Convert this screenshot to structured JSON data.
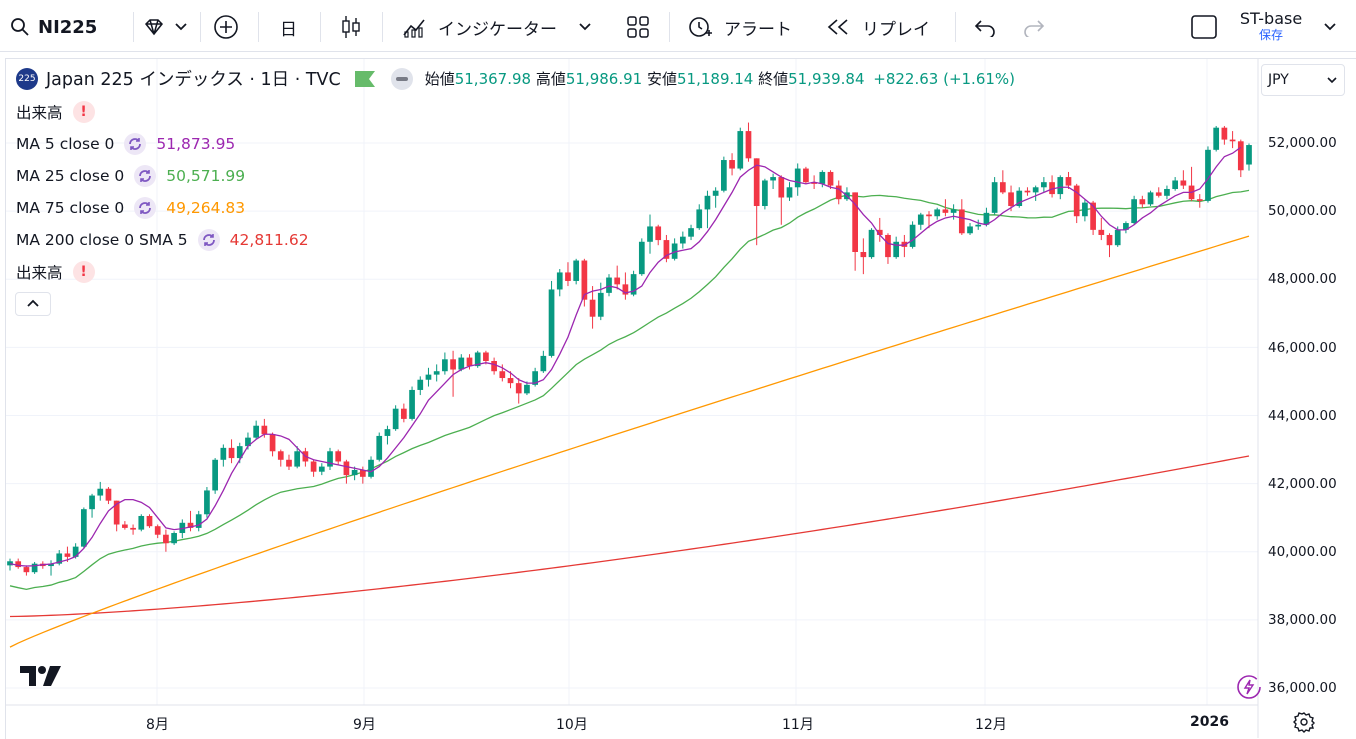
{
  "toolbar": {
    "symbol": "NI225",
    "interval": "日",
    "indicators_label": "インジケーター",
    "alert_label": "アラート",
    "replay_label": "リプレイ",
    "layout_name": "ST-base",
    "save_label": "保存"
  },
  "legend": {
    "badge": "225",
    "title": "Japan 225 インデックス · 1日 · TVC",
    "open_label": "始値",
    "open": "51,367.98",
    "high_label": "高値",
    "high": "51,986.91",
    "low_label": "安値",
    "low": "51,189.14",
    "close_label": "終値",
    "close": "51,939.84",
    "change": "+822.63 (+1.61%)",
    "volume_label": "出来高",
    "ma5_label": "MA 5 close 0",
    "ma5_value": "51,873.95",
    "ma25_label": "MA 25 close 0",
    "ma25_value": "50,571.99",
    "ma75_label": "MA 75 close 0",
    "ma75_value": "49,264.83",
    "ma200_label": "MA 200 close 0 SMA 5",
    "ma200_value": "42,811.62",
    "volume2_label": "出来高"
  },
  "currency": "JPY",
  "colors": {
    "up": "#089981",
    "down": "#f23645",
    "ma5": "#9c27b0",
    "ma25": "#4caf50",
    "ma75": "#ff9800",
    "ma200": "#e53935"
  },
  "chart_data": {
    "type": "candlestick",
    "ylim": [
      35500,
      53200
    ],
    "y_ticks": [
      "52,000.00",
      "50,000.00",
      "48,000.00",
      "46,000.00",
      "44,000.00",
      "42,000.00",
      "40,000.00",
      "38,000.00",
      "36,000.00"
    ],
    "x_ticks": [
      "8月",
      "9月",
      "10月",
      "11月",
      "12月",
      "2026"
    ],
    "candles": [
      [
        39600,
        39800,
        39450,
        39720
      ],
      [
        39720,
        39800,
        39500,
        39550
      ],
      [
        39550,
        39600,
        39300,
        39400
      ],
      [
        39400,
        39700,
        39350,
        39650
      ],
      [
        39650,
        39720,
        39500,
        39580
      ],
      [
        39580,
        39750,
        39300,
        39650
      ],
      [
        39650,
        40050,
        39600,
        39950
      ],
      [
        39950,
        40150,
        39700,
        39850
      ],
      [
        39850,
        40250,
        39800,
        40150
      ],
      [
        40150,
        41300,
        40100,
        41250
      ],
      [
        41250,
        41700,
        41000,
        41650
      ],
      [
        41650,
        42050,
        41500,
        41850
      ],
      [
        41850,
        41900,
        41400,
        41500
      ],
      [
        41500,
        41500,
        40600,
        40800
      ],
      [
        40800,
        40900,
        40650,
        40700
      ],
      [
        40700,
        40800,
        40500,
        40650
      ],
      [
        40650,
        41100,
        40600,
        41050
      ],
      [
        41050,
        41100,
        40700,
        40750
      ],
      [
        40750,
        40800,
        40400,
        40500
      ],
      [
        40500,
        40650,
        40000,
        40250
      ],
      [
        40250,
        40600,
        40200,
        40550
      ],
      [
        40550,
        40950,
        40400,
        40850
      ],
      [
        40850,
        41200,
        40600,
        40700
      ],
      [
        40700,
        41200,
        40600,
        41100
      ],
      [
        41100,
        41900,
        41000,
        41800
      ],
      [
        41800,
        42750,
        41700,
        42700
      ],
      [
        42700,
        43150,
        42500,
        43050
      ],
      [
        43050,
        43300,
        42600,
        42750
      ],
      [
        42750,
        43200,
        42600,
        43100
      ],
      [
        43100,
        43500,
        43000,
        43350
      ],
      [
        43350,
        43850,
        43300,
        43700
      ],
      [
        43700,
        43900,
        43350,
        43450
      ],
      [
        43450,
        43500,
        42800,
        42950
      ],
      [
        42950,
        43000,
        42500,
        42700
      ],
      [
        42700,
        42850,
        42400,
        42500
      ],
      [
        42500,
        43100,
        42450,
        42950
      ],
      [
        42950,
        43050,
        42500,
        42650
      ],
      [
        42650,
        42700,
        42200,
        42350
      ],
      [
        42350,
        42600,
        42250,
        42500
      ],
      [
        42500,
        43050,
        42400,
        42950
      ],
      [
        42950,
        43000,
        42550,
        42650
      ],
      [
        42650,
        42700,
        42000,
        42250
      ],
      [
        42250,
        42500,
        42100,
        42400
      ],
      [
        42400,
        42500,
        42000,
        42200
      ],
      [
        42200,
        42800,
        42150,
        42700
      ],
      [
        42700,
        43500,
        42650,
        43400
      ],
      [
        43400,
        43700,
        43150,
        43600
      ],
      [
        43600,
        44300,
        43550,
        44200
      ],
      [
        44200,
        44350,
        43800,
        43900
      ],
      [
        43900,
        44850,
        43850,
        44750
      ],
      [
        44750,
        45150,
        44600,
        45050
      ],
      [
        45050,
        45400,
        44850,
        45200
      ],
      [
        45200,
        45500,
        45000,
        45300
      ],
      [
        45300,
        45850,
        45200,
        45650
      ],
      [
        45650,
        45900,
        44550,
        45350
      ],
      [
        45350,
        45800,
        45300,
        45700
      ],
      [
        45700,
        45800,
        45350,
        45450
      ],
      [
        45450,
        45900,
        45400,
        45850
      ],
      [
        45850,
        45900,
        45500,
        45600
      ],
      [
        45600,
        45700,
        45200,
        45300
      ],
      [
        45300,
        45500,
        45000,
        45100
      ],
      [
        45100,
        45300,
        44800,
        44950
      ],
      [
        44950,
        45100,
        44350,
        44650
      ],
      [
        44650,
        45000,
        44600,
        44900
      ],
      [
        44900,
        45400,
        44850,
        45300
      ],
      [
        45300,
        45900,
        45250,
        45750
      ],
      [
        45750,
        47950,
        45700,
        47700
      ],
      [
        47700,
        48300,
        47500,
        48200
      ],
      [
        48200,
        48500,
        47800,
        47950
      ],
      [
        47950,
        48600,
        47850,
        48550
      ],
      [
        48550,
        48600,
        47200,
        47400
      ],
      [
        47400,
        47800,
        46550,
        46900
      ],
      [
        46900,
        47900,
        46800,
        47600
      ],
      [
        47600,
        48150,
        47500,
        48050
      ],
      [
        48050,
        48400,
        47700,
        47850
      ],
      [
        47850,
        48200,
        47400,
        47550
      ],
      [
        47550,
        48250,
        47500,
        48150
      ],
      [
        48150,
        49200,
        48100,
        49100
      ],
      [
        49100,
        49900,
        48750,
        49550
      ],
      [
        49550,
        49600,
        49000,
        49150
      ],
      [
        49150,
        49300,
        48500,
        48600
      ],
      [
        48600,
        49200,
        48550,
        49050
      ],
      [
        49050,
        49400,
        48900,
        49250
      ],
      [
        49250,
        49600,
        49150,
        49500
      ],
      [
        49500,
        50200,
        49450,
        50050
      ],
      [
        50050,
        50600,
        49500,
        50450
      ],
      [
        50450,
        50700,
        50100,
        50600
      ],
      [
        50600,
        51600,
        50550,
        51500
      ],
      [
        51500,
        51700,
        51050,
        51250
      ],
      [
        51250,
        52450,
        51200,
        52350
      ],
      [
        52350,
        52600,
        51450,
        51550
      ],
      [
        51550,
        51550,
        49000,
        50150
      ],
      [
        50150,
        50950,
        50050,
        50900
      ],
      [
        50900,
        51100,
        50650,
        51000
      ],
      [
        51000,
        51050,
        49600,
        50400
      ],
      [
        50400,
        50850,
        50300,
        50700
      ],
      [
        50700,
        51400,
        50450,
        51250
      ],
      [
        51250,
        51300,
        50800,
        50850
      ],
      [
        50850,
        51050,
        50650,
        50800
      ],
      [
        50800,
        51200,
        50700,
        51150
      ],
      [
        51150,
        51200,
        50650,
        50750
      ],
      [
        50750,
        50900,
        50200,
        50350
      ],
      [
        50350,
        50700,
        50300,
        50550
      ],
      [
        50550,
        50550,
        48250,
        48800
      ],
      [
        48800,
        49200,
        48150,
        48650
      ],
      [
        48650,
        49500,
        48600,
        49450
      ],
      [
        49450,
        49800,
        49100,
        49300
      ],
      [
        49300,
        49350,
        48450,
        48650
      ],
      [
        48650,
        49250,
        48600,
        49100
      ],
      [
        49100,
        49300,
        48650,
        48950
      ],
      [
        48950,
        49700,
        48900,
        49600
      ],
      [
        49600,
        49950,
        49450,
        49900
      ],
      [
        49900,
        50000,
        49500,
        49850
      ],
      [
        49850,
        50100,
        49750,
        50050
      ],
      [
        50050,
        50350,
        49850,
        49950
      ],
      [
        49950,
        50200,
        49750,
        50050
      ],
      [
        50050,
        50350,
        49300,
        49350
      ],
      [
        49350,
        49650,
        49300,
        49550
      ],
      [
        49550,
        49750,
        49450,
        49600
      ],
      [
        49600,
        50100,
        49550,
        49950
      ],
      [
        49950,
        51000,
        49900,
        50850
      ],
      [
        50850,
        51200,
        50500,
        50550
      ],
      [
        50550,
        50750,
        50000,
        50150
      ],
      [
        50150,
        50700,
        50100,
        50600
      ],
      [
        50600,
        50700,
        50450,
        50550
      ],
      [
        50550,
        50750,
        50300,
        50700
      ],
      [
        50700,
        51000,
        50550,
        50850
      ],
      [
        50850,
        51050,
        50400,
        50500
      ],
      [
        50500,
        51050,
        50350,
        51000
      ],
      [
        51000,
        51150,
        50650,
        50750
      ],
      [
        50750,
        50800,
        49650,
        49850
      ],
      [
        49850,
        50350,
        49700,
        50250
      ],
      [
        50250,
        50300,
        49300,
        49450
      ],
      [
        49450,
        49800,
        49150,
        49300
      ],
      [
        49300,
        49350,
        48650,
        49000
      ],
      [
        49000,
        49550,
        48950,
        49450
      ],
      [
        49450,
        49700,
        49350,
        49650
      ],
      [
        49650,
        50450,
        49600,
        50350
      ],
      [
        50350,
        50450,
        50100,
        50200
      ],
      [
        50200,
        50600,
        50150,
        50550
      ],
      [
        50550,
        50700,
        50400,
        50450
      ],
      [
        50450,
        50750,
        50350,
        50650
      ],
      [
        50650,
        51000,
        50600,
        50900
      ],
      [
        50900,
        51200,
        50650,
        50750
      ],
      [
        50750,
        51300,
        50300,
        50350
      ],
      [
        50350,
        50500,
        50100,
        50300
      ],
      [
        50300,
        51900,
        50250,
        51800
      ],
      [
        51800,
        52500,
        51750,
        52450
      ],
      [
        52450,
        52500,
        51950,
        52100
      ],
      [
        52100,
        52350,
        51850,
        52050
      ],
      [
        52050,
        52100,
        51000,
        51200
      ],
      [
        51367.98,
        51986.91,
        51189.14,
        51939.84
      ]
    ],
    "ma5": [
      39650,
      39600,
      39580,
      39590,
      39620,
      39640,
      39700,
      39760,
      39860,
      40100,
      40420,
      40830,
      41200,
      41400,
      41530,
      41530,
      41450,
      41300,
      41000,
      40700,
      40650,
      40680,
      40730,
      40780,
      40960,
      41350,
      41800,
      42300,
      42700,
      43100,
      43300,
      43450,
      43450,
      43400,
      43300,
      43050,
      42800,
      42700,
      42650,
      42600,
      42550,
      42500,
      42450,
      42400,
      42350,
      42500,
      42750,
      43050,
      43350,
      43700,
      44050,
      44450,
      44700,
      44950,
      45200,
      45350,
      45450,
      45500,
      45550,
      45500,
      45400,
      45250,
      45050,
      44950,
      44950,
      45050,
      45350,
      45800,
      46300,
      46950,
      47550,
      47650,
      47700,
      47800,
      47750,
      47600,
      47650,
      47800,
      48200,
      48500,
      48700,
      48800,
      48850,
      48900,
      49100,
      49400,
      49750,
      50150,
      50550,
      51000,
      51200,
      51350,
      51300,
      51150,
      51000,
      50900,
      50850,
      50800,
      50850,
      50800,
      50700,
      50650,
      50450,
      50200,
      49900,
      49650,
      49300,
      49050,
      49000,
      49000,
      49150,
      49350,
      49550,
      49700,
      49800,
      49850,
      49800,
      49750,
      49650,
      49600,
      49750,
      49950,
      50100,
      50250,
      50350,
      50450,
      50550,
      50650,
      50700,
      50700,
      50550,
      50350,
      50150,
      49850,
      49600,
      49450,
      49450,
      49600,
      49800,
      49950,
      50150,
      50300,
      50450,
      50550,
      50550,
      50650,
      50950,
      51300,
      51600,
      51700,
      51874
    ]
  }
}
